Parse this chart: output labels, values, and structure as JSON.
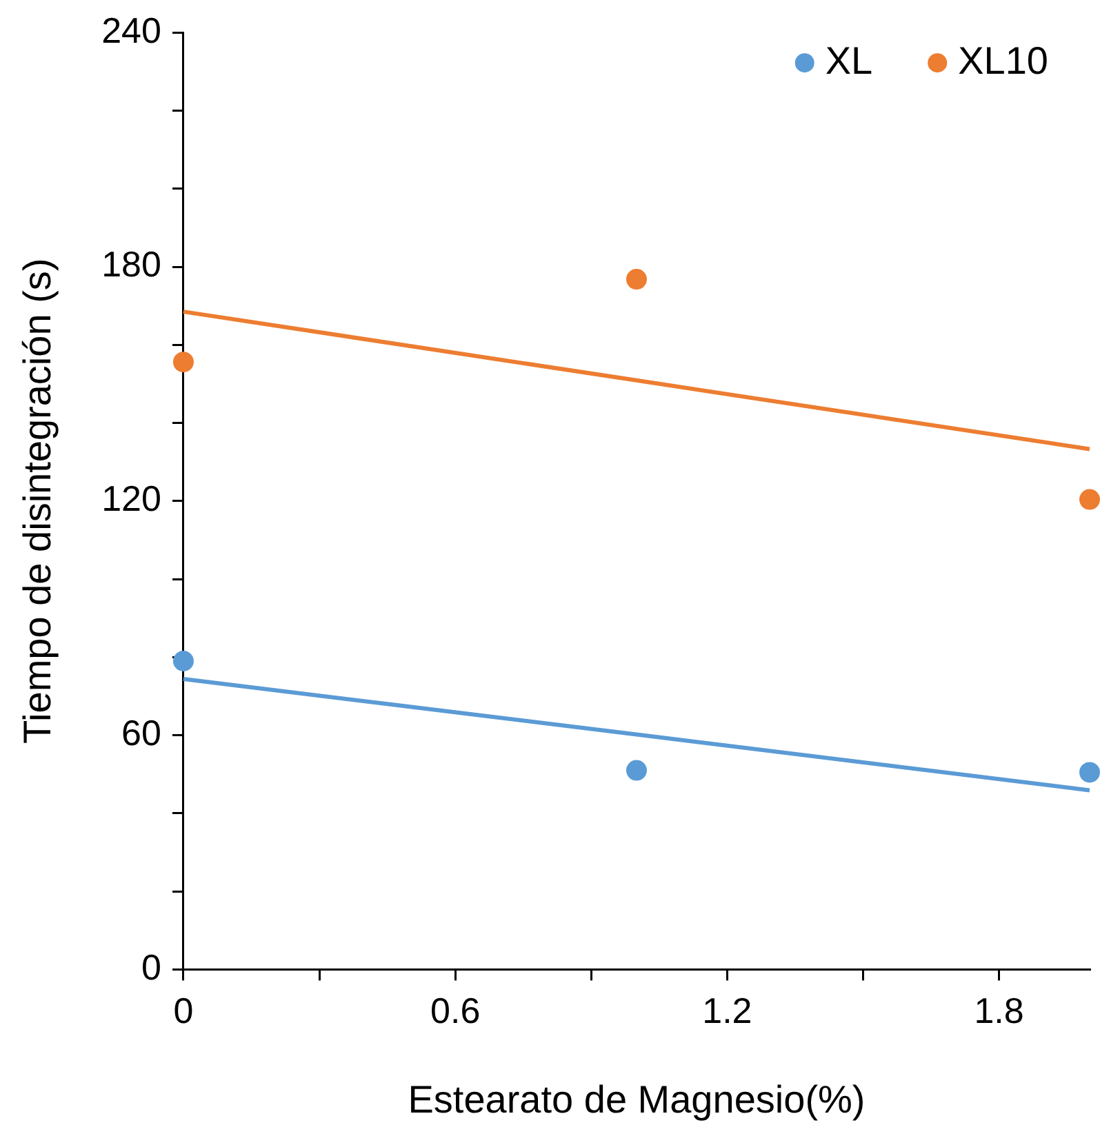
{
  "chart_data": {
    "type": "scatter",
    "xlabel": "Estearato de Magnesio(%)",
    "ylabel": "Tiempo de disintegración (s)",
    "x": [
      0,
      1,
      2
    ],
    "series": [
      {
        "name": "XL",
        "color": "#5b9bd5",
        "marker": "circle",
        "values": [
          79,
          51,
          50.5
        ]
      },
      {
        "name": "XL10",
        "color": "#ed7d31",
        "marker": "circle",
        "values": [
          155.6,
          176.8,
          120.4
        ]
      },
      {
        "type": "line",
        "color": "#5b9bd5",
        "marker": "none",
        "values": [
          74.4,
          60.2,
          45.9
        ]
      },
      {
        "type": "line",
        "color": "#ed7d31",
        "marker": "none",
        "values": [
          168.5,
          150.9,
          133.3
        ]
      }
    ],
    "xlim": [
      0,
      2
    ],
    "xticks": [
      0,
      {
        "value": 0.3,
        "label": null
      },
      0.6,
      {
        "value": 0.9,
        "label": null
      },
      1.2,
      {
        "value": 1.5,
        "label": null
      },
      1.8
    ],
    "ylim": [
      0,
      240
    ],
    "yticks": [
      0,
      {
        "value": 20,
        "label": null
      },
      {
        "value": 40,
        "label": null
      },
      60,
      {
        "value": 80,
        "label": null
      },
      {
        "value": 100,
        "label": null
      },
      120,
      {
        "value": 140,
        "label": null
      },
      {
        "value": 160,
        "label": null
      },
      180,
      {
        "value": 200,
        "label": null
      },
      {
        "value": 220,
        "label": null
      },
      240
    ],
    "grid": false,
    "legend": "top right",
    "line_style": "solid"
  }
}
